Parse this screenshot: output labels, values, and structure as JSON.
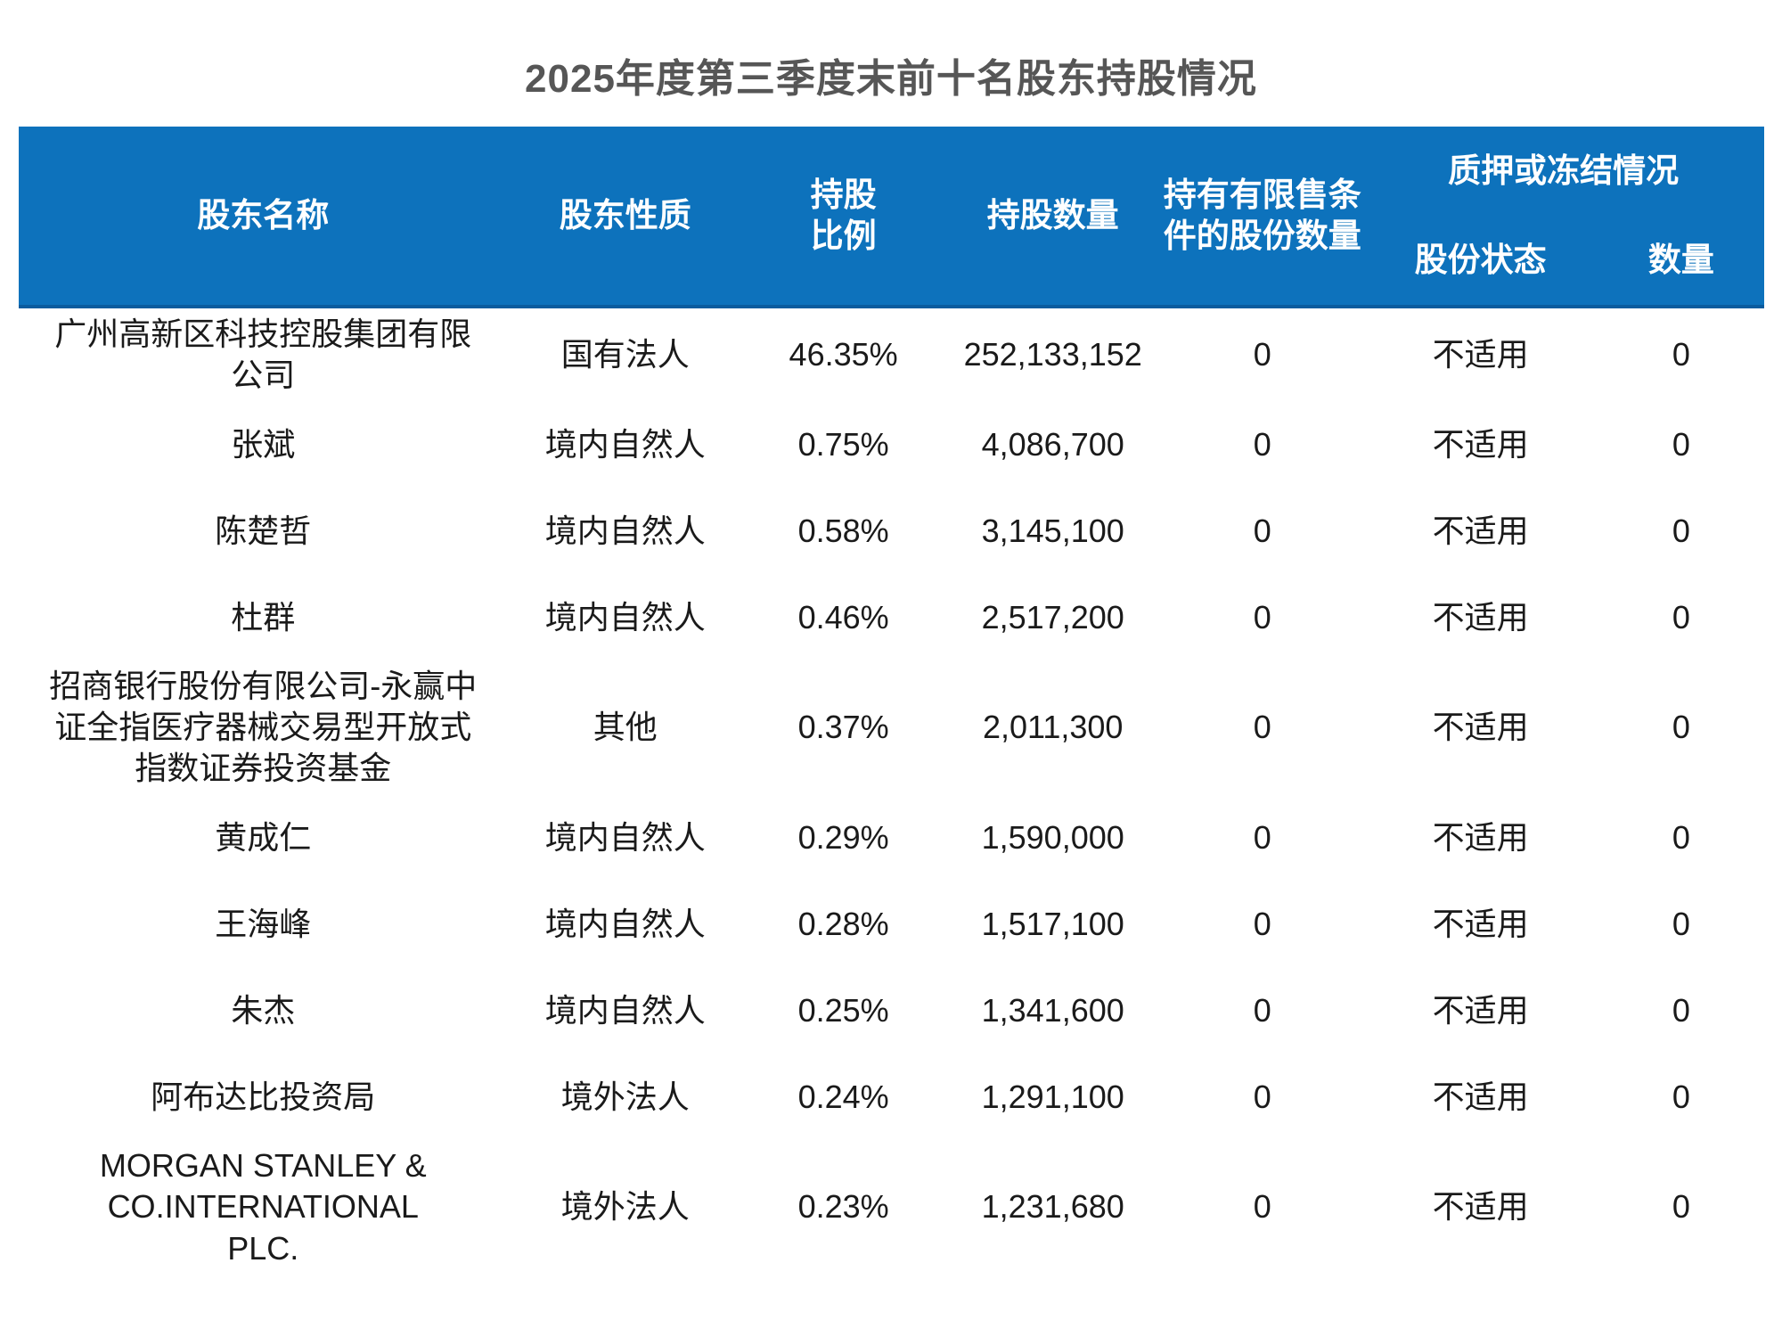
{
  "title": "2025年度第三季度末前十名股东持股情况",
  "colors": {
    "header_bg": "#0D72BC",
    "header_border": "#0A5C9E",
    "header_text": "#FFFFFF",
    "title_text": "#565656",
    "body_text": "#1A1A1A"
  },
  "table": {
    "headers": {
      "name": "股东名称",
      "nature": "股东性质",
      "ratio": "持股\n比例",
      "quantity": "持股数量",
      "restricted": "持有有限售条\n件的股份数量",
      "pledge_group": "质押或冻结情况",
      "pledge_status": "股份状态",
      "pledge_count": "数量"
    },
    "rows": [
      {
        "name": "广州高新区科技控股集团有限\n公司",
        "nature": "国有法人",
        "ratio": "46.35%",
        "quantity": "252,133,152",
        "restricted": "0",
        "status": "不适用",
        "count": "0"
      },
      {
        "name": "张斌",
        "nature": "境内自然人",
        "ratio": "0.75%",
        "quantity": "4,086,700",
        "restricted": "0",
        "status": "不适用",
        "count": "0"
      },
      {
        "name": "陈楚哲",
        "nature": "境内自然人",
        "ratio": "0.58%",
        "quantity": "3,145,100",
        "restricted": "0",
        "status": "不适用",
        "count": "0"
      },
      {
        "name": "杜群",
        "nature": "境内自然人",
        "ratio": "0.46%",
        "quantity": "2,517,200",
        "restricted": "0",
        "status": "不适用",
        "count": "0"
      },
      {
        "name": "招商银行股份有限公司-永赢中\n证全指医疗器械交易型开放式\n指数证券投资基金",
        "nature": "其他",
        "ratio": "0.37%",
        "quantity": "2,011,300",
        "restricted": "0",
        "status": "不适用",
        "count": "0"
      },
      {
        "name": "黄成仁",
        "nature": "境内自然人",
        "ratio": "0.29%",
        "quantity": "1,590,000",
        "restricted": "0",
        "status": "不适用",
        "count": "0"
      },
      {
        "name": "王海峰",
        "nature": "境内自然人",
        "ratio": "0.28%",
        "quantity": "1,517,100",
        "restricted": "0",
        "status": "不适用",
        "count": "0"
      },
      {
        "name": "朱杰",
        "nature": "境内自然人",
        "ratio": "0.25%",
        "quantity": "1,341,600",
        "restricted": "0",
        "status": "不适用",
        "count": "0"
      },
      {
        "name": "阿布达比投资局",
        "nature": "境外法人",
        "ratio": "0.24%",
        "quantity": "1,291,100",
        "restricted": "0",
        "status": "不适用",
        "count": "0"
      },
      {
        "name": "MORGAN STANLEY &\nCO.INTERNATIONAL\nPLC.",
        "nature": "境外法人",
        "ratio": "0.23%",
        "quantity": "1,231,680",
        "restricted": "0",
        "status": "不适用",
        "count": "0"
      }
    ]
  }
}
